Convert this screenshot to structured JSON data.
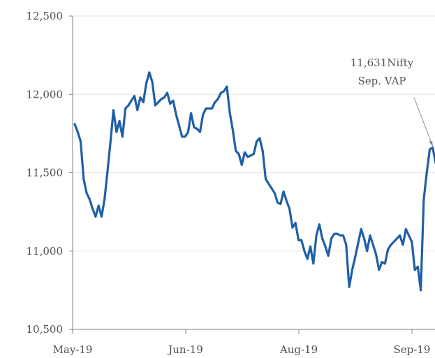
{
  "chart_data": {
    "type": "line",
    "title": "",
    "xlabel": "",
    "ylabel": "",
    "ylim": [
      10500,
      12500
    ],
    "yticks": [
      10500,
      11000,
      11500,
      12000,
      12500
    ],
    "ytick_labels": [
      "10,500",
      "11,000",
      "11,500",
      "12,000",
      "12,500"
    ],
    "xtick_labels": [
      "May-19",
      "Jun-19",
      "Aug-19",
      "Sep-19"
    ],
    "grid": "horizontal",
    "legend": "none",
    "series": [
      {
        "color": "#1f5fa6",
        "values": [
          11810,
          11760,
          11700,
          11460,
          11370,
          11330,
          11270,
          11220,
          11290,
          11220,
          11330,
          11510,
          11700,
          11900,
          11760,
          11830,
          11730,
          11910,
          11930,
          11960,
          11990,
          11900,
          11980,
          11950,
          12070,
          12140,
          12080,
          11930,
          11950,
          11970,
          11980,
          12010,
          11940,
          11960,
          11870,
          11800,
          11730,
          11730,
          11760,
          11880,
          11790,
          11780,
          11760,
          11870,
          11910,
          11910,
          11910,
          11950,
          11970,
          12010,
          12020,
          12050,
          11880,
          11770,
          11640,
          11620,
          11550,
          11630,
          11600,
          11610,
          11620,
          11700,
          11720,
          11640,
          11460,
          11430,
          11400,
          11370,
          11310,
          11300,
          11380,
          11320,
          11270,
          11150,
          11180,
          11070,
          11070,
          11000,
          10950,
          11030,
          10920,
          11100,
          11170,
          11080,
          11030,
          10970,
          11080,
          11110,
          11110,
          11100,
          11100,
          11040,
          10770,
          10880,
          10960,
          11050,
          11140,
          11080,
          11000,
          11100,
          11040,
          10980,
          10880,
          10930,
          10920,
          11010,
          11040,
          11060,
          11080,
          11100,
          11040,
          11140,
          11100,
          11060,
          10880,
          10900,
          10750,
          11330,
          11500,
          11650,
          11660,
          11560
        ]
      }
    ],
    "annotation": {
      "lines": [
        "11,631Nifty",
        "Sep. VAP"
      ],
      "value": 11631
    }
  }
}
